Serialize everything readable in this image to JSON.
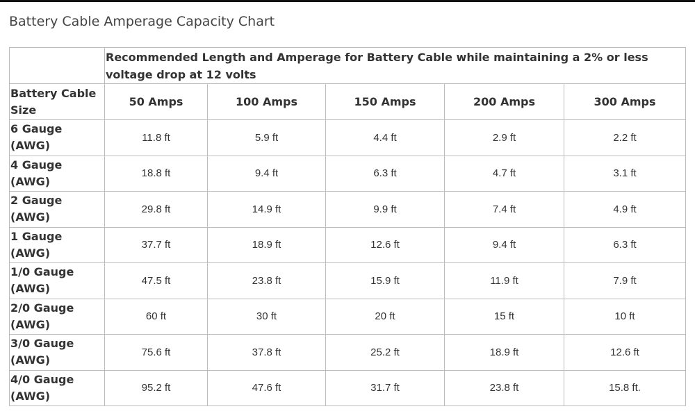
{
  "page": {
    "title": "Battery Cable Amperage Capacity Chart"
  },
  "table": {
    "group_header": "Recommended Length and Amperage for Battery Cable while maintaining a 2% or less voltage drop at 12 volts",
    "size_header": "Battery Cable Size",
    "amp_headers": [
      "50 Amps",
      "100 Amps",
      "150 Amps",
      "200 Amps",
      "300 Amps"
    ],
    "rows": [
      {
        "gauge_line1": "6 Gauge",
        "gauge_line2": "(AWG)",
        "values": [
          "11.8 ft",
          "5.9 ft",
          "4.4 ft",
          "2.9 ft",
          "2.2 ft"
        ]
      },
      {
        "gauge_line1": "4 Gauge",
        "gauge_line2": "(AWG)",
        "values": [
          "18.8 ft",
          "9.4 ft",
          "6.3 ft",
          "4.7 ft",
          "3.1 ft"
        ]
      },
      {
        "gauge_line1": "2 Gauge",
        "gauge_line2": "(AWG)",
        "values": [
          "29.8 ft",
          "14.9 ft",
          "9.9 ft",
          "7.4 ft",
          "4.9 ft"
        ]
      },
      {
        "gauge_line1": "1 Gauge",
        "gauge_line2": "(AWG)",
        "values": [
          "37.7 ft",
          "18.9 ft",
          "12.6 ft",
          "9.4 ft",
          "6.3 ft"
        ]
      },
      {
        "gauge_line1": "1/0 Gauge",
        "gauge_line2": "(AWG)",
        "values": [
          "47.5 ft",
          "23.8 ft",
          "15.9 ft",
          "11.9 ft",
          "7.9 ft"
        ]
      },
      {
        "gauge_line1": "2/0 Gauge",
        "gauge_line2": "(AWG)",
        "values": [
          "60 ft",
          "30 ft",
          "20 ft",
          "15 ft",
          "10 ft"
        ]
      },
      {
        "gauge_line1": "3/0 Gauge",
        "gauge_line2": "(AWG)",
        "values": [
          "75.6 ft",
          "37.8 ft",
          "25.2 ft",
          "18.9 ft",
          "12.6 ft"
        ]
      },
      {
        "gauge_line1": "4/0 Gauge",
        "gauge_line2": "(AWG)",
        "values": [
          "95.2 ft",
          "47.6 ft",
          "31.7 ft",
          "23.8 ft",
          "15.8 ft."
        ]
      }
    ]
  }
}
